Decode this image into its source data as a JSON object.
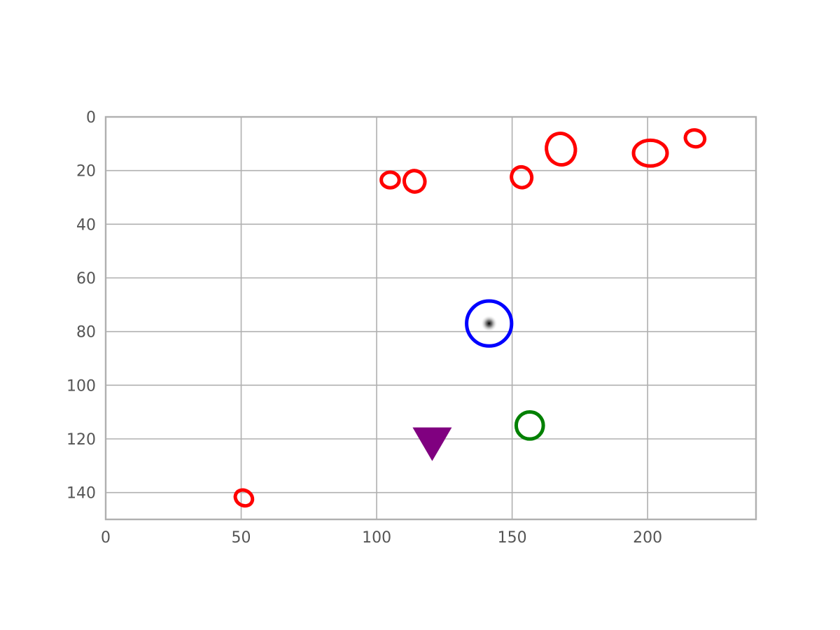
{
  "chart_data": {
    "type": "scatter",
    "title": "",
    "xlabel": "",
    "ylabel": "",
    "xlim": [
      0,
      240
    ],
    "ylim": [
      150,
      0
    ],
    "y_inverted": true,
    "grid": true,
    "x_ticks": [
      0,
      50,
      100,
      150,
      200
    ],
    "x_tick_labels": [
      "0",
      "50",
      "100",
      "150",
      "200"
    ],
    "y_ticks": [
      0,
      20,
      40,
      60,
      80,
      100,
      120,
      140
    ],
    "y_tick_labels": [
      "0",
      "20",
      "40",
      "60",
      "80",
      "100",
      "120",
      "140"
    ],
    "image_background": "mostly white image with a small dark spot",
    "bright_spot": {
      "x": 141.5,
      "y": 77
    },
    "series": [
      {
        "marker": "ellipse-outline",
        "color": "#ff0000",
        "points": [
          {
            "x": 51,
            "y": 142,
            "rx": 3.3,
            "ry": 2.8,
            "angle": 30
          },
          {
            "x": 105,
            "y": 23.5,
            "rx": 3.3,
            "ry": 2.9,
            "angle": 0
          },
          {
            "x": 114,
            "y": 24,
            "rx": 3.8,
            "ry": 4.0,
            "angle": -20
          },
          {
            "x": 153.5,
            "y": 22.5,
            "rx": 3.7,
            "ry": 3.9,
            "angle": -30
          },
          {
            "x": 168,
            "y": 12,
            "rx": 5.3,
            "ry": 5.9,
            "angle": -15
          },
          {
            "x": 201,
            "y": 13.5,
            "rx": 6.2,
            "ry": 4.8,
            "angle": 0
          },
          {
            "x": 217.5,
            "y": 8,
            "rx": 3.6,
            "ry": 3.1,
            "angle": 15
          }
        ]
      },
      {
        "marker": "circle-outline",
        "color": "#0000ff",
        "points": [
          {
            "x": 141.5,
            "y": 77,
            "r": 8.3
          }
        ]
      },
      {
        "marker": "circle-outline",
        "color": "#008000",
        "points": [
          {
            "x": 156.5,
            "y": 115,
            "r": 5.0
          }
        ]
      },
      {
        "marker": "triangle-down",
        "color": "#800080",
        "points": [
          {
            "x": 120.5,
            "y": 122
          }
        ]
      }
    ]
  }
}
